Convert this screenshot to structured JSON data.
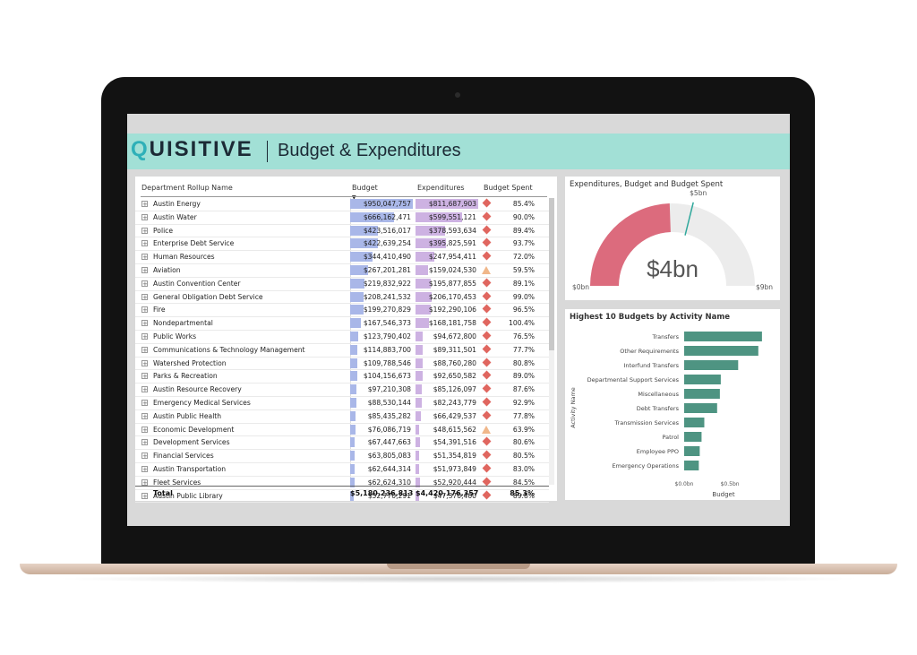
{
  "header": {
    "logo_q": "Q",
    "logo_rest": "UISITIVE",
    "title": "Budget & Expenditures"
  },
  "table": {
    "columns": {
      "name": "Department Rollup Name",
      "budget": "Budget",
      "expenditures": "Expenditures",
      "spent": "Budget Spent"
    },
    "expander_symbol": "+",
    "budget_max": 950047757,
    "exp_max": 811687903,
    "rows": [
      {
        "name": "Austin Energy",
        "budget": "$950,047,757",
        "budget_num": 950047757,
        "exp": "$811,687,903",
        "exp_num": 811687903,
        "spent": "85.4%",
        "kpi": "diamond"
      },
      {
        "name": "Austin Water",
        "budget": "$666,162,471",
        "budget_num": 666162471,
        "exp": "$599,551,121",
        "exp_num": 599551121,
        "spent": "90.0%",
        "kpi": "diamond"
      },
      {
        "name": "Police",
        "budget": "$423,516,017",
        "budget_num": 423516017,
        "exp": "$378,593,634",
        "exp_num": 378593634,
        "spent": "89.4%",
        "kpi": "diamond"
      },
      {
        "name": "Enterprise Debt Service",
        "budget": "$422,639,254",
        "budget_num": 422639254,
        "exp": "$395,825,591",
        "exp_num": 395825591,
        "spent": "93.7%",
        "kpi": "diamond"
      },
      {
        "name": "Human Resources",
        "budget": "$344,410,490",
        "budget_num": 344410490,
        "exp": "$247,954,411",
        "exp_num": 247954411,
        "spent": "72.0%",
        "kpi": "diamond"
      },
      {
        "name": "Aviation",
        "budget": "$267,201,281",
        "budget_num": 267201281,
        "exp": "$159,024,530",
        "exp_num": 159024530,
        "spent": "59.5%",
        "kpi": "triangle"
      },
      {
        "name": "Austin Convention Center",
        "budget": "$219,832,922",
        "budget_num": 219832922,
        "exp": "$195,877,855",
        "exp_num": 195877855,
        "spent": "89.1%",
        "kpi": "diamond"
      },
      {
        "name": "General Obligation Debt Service",
        "budget": "$208,241,532",
        "budget_num": 208241532,
        "exp": "$206,170,453",
        "exp_num": 206170453,
        "spent": "99.0%",
        "kpi": "diamond"
      },
      {
        "name": "Fire",
        "budget": "$199,270,829",
        "budget_num": 199270829,
        "exp": "$192,290,106",
        "exp_num": 192290106,
        "spent": "96.5%",
        "kpi": "diamond"
      },
      {
        "name": "Nondepartmental",
        "budget": "$167,546,373",
        "budget_num": 167546373,
        "exp": "$168,181,758",
        "exp_num": 168181758,
        "spent": "100.4%",
        "kpi": "diamond"
      },
      {
        "name": "Public Works",
        "budget": "$123,790,402",
        "budget_num": 123790402,
        "exp": "$94,672,800",
        "exp_num": 94672800,
        "spent": "76.5%",
        "kpi": "diamond"
      },
      {
        "name": "Communications & Technology Management",
        "budget": "$114,883,700",
        "budget_num": 114883700,
        "exp": "$89,311,501",
        "exp_num": 89311501,
        "spent": "77.7%",
        "kpi": "diamond"
      },
      {
        "name": "Watershed Protection",
        "budget": "$109,788,546",
        "budget_num": 109788546,
        "exp": "$88,760,280",
        "exp_num": 88760280,
        "spent": "80.8%",
        "kpi": "diamond"
      },
      {
        "name": "Parks & Recreation",
        "budget": "$104,156,673",
        "budget_num": 104156673,
        "exp": "$92,650,582",
        "exp_num": 92650582,
        "spent": "89.0%",
        "kpi": "diamond"
      },
      {
        "name": "Austin Resource Recovery",
        "budget": "$97,210,308",
        "budget_num": 97210308,
        "exp": "$85,126,097",
        "exp_num": 85126097,
        "spent": "87.6%",
        "kpi": "diamond"
      },
      {
        "name": "Emergency Medical Services",
        "budget": "$88,530,144",
        "budget_num": 88530144,
        "exp": "$82,243,779",
        "exp_num": 82243779,
        "spent": "92.9%",
        "kpi": "diamond"
      },
      {
        "name": "Austin Public Health",
        "budget": "$85,435,282",
        "budget_num": 85435282,
        "exp": "$66,429,537",
        "exp_num": 66429537,
        "spent": "77.8%",
        "kpi": "diamond"
      },
      {
        "name": "Economic Development",
        "budget": "$76,086,719",
        "budget_num": 76086719,
        "exp": "$48,615,562",
        "exp_num": 48615562,
        "spent": "63.9%",
        "kpi": "triangle"
      },
      {
        "name": "Development Services",
        "budget": "$67,447,663",
        "budget_num": 67447663,
        "exp": "$54,391,516",
        "exp_num": 54391516,
        "spent": "80.6%",
        "kpi": "diamond"
      },
      {
        "name": "Financial Services",
        "budget": "$63,805,083",
        "budget_num": 63805083,
        "exp": "$51,354,819",
        "exp_num": 51354819,
        "spent": "80.5%",
        "kpi": "diamond"
      },
      {
        "name": "Austin Transportation",
        "budget": "$62,644,314",
        "budget_num": 62644314,
        "exp": "$51,973,849",
        "exp_num": 51973849,
        "spent": "83.0%",
        "kpi": "diamond"
      },
      {
        "name": "Fleet Services",
        "budget": "$62,624,310",
        "budget_num": 62624310,
        "exp": "$52,920,444",
        "exp_num": 52920444,
        "spent": "84.5%",
        "kpi": "diamond"
      },
      {
        "name": "Austin Public Library",
        "budget": "$52,770,291",
        "budget_num": 52770291,
        "exp": "$47,370,400",
        "exp_num": 47370400,
        "spent": "89.8%",
        "kpi": "diamond"
      }
    ],
    "total": {
      "label": "Total",
      "budget": "$5,180,236,813",
      "exp": "$4,420,176,357",
      "spent": "85.3%"
    },
    "colors": {
      "budget_bar": "#a9b7e8",
      "exp_bar": "#cdb2e2",
      "kpi_bad": "#e0665f",
      "kpi_warn": "#f0b78a"
    }
  },
  "chart_data": [
    {
      "type": "gauge",
      "title": "Expenditures, Budget and Budget Spent",
      "value": 4.4,
      "value_label": "$4bn",
      "min": 0,
      "max": 9,
      "min_label": "$0bn",
      "max_label": "$9bn",
      "target": 5.2,
      "target_label": "$5bn",
      "fill_color": "#dc6b7d",
      "track_color": "#ececec",
      "target_color": "#2fa89c"
    },
    {
      "type": "bar",
      "orientation": "horizontal",
      "title": "Highest 10 Budgets by Activity Name",
      "categories": [
        "Transfers",
        "Other Requirements",
        "Interfund Transfers",
        "Departmental Support Services",
        "Miscellaneous",
        "Debt Transfers",
        "Transmission Services",
        "Patrol",
        "Employee PPO",
        "Emergency Operations"
      ],
      "values": [
        0.85,
        0.81,
        0.59,
        0.4,
        0.39,
        0.36,
        0.22,
        0.19,
        0.17,
        0.16
      ],
      "xlabel": "Budget",
      "ylabel": "Activity Name",
      "xticks": [
        0,
        0.5
      ],
      "xtick_labels": [
        "$0.0bn",
        "$0.5bn"
      ],
      "xlim": [
        0,
        0.9
      ],
      "bar_color": "#4e9482"
    }
  ]
}
